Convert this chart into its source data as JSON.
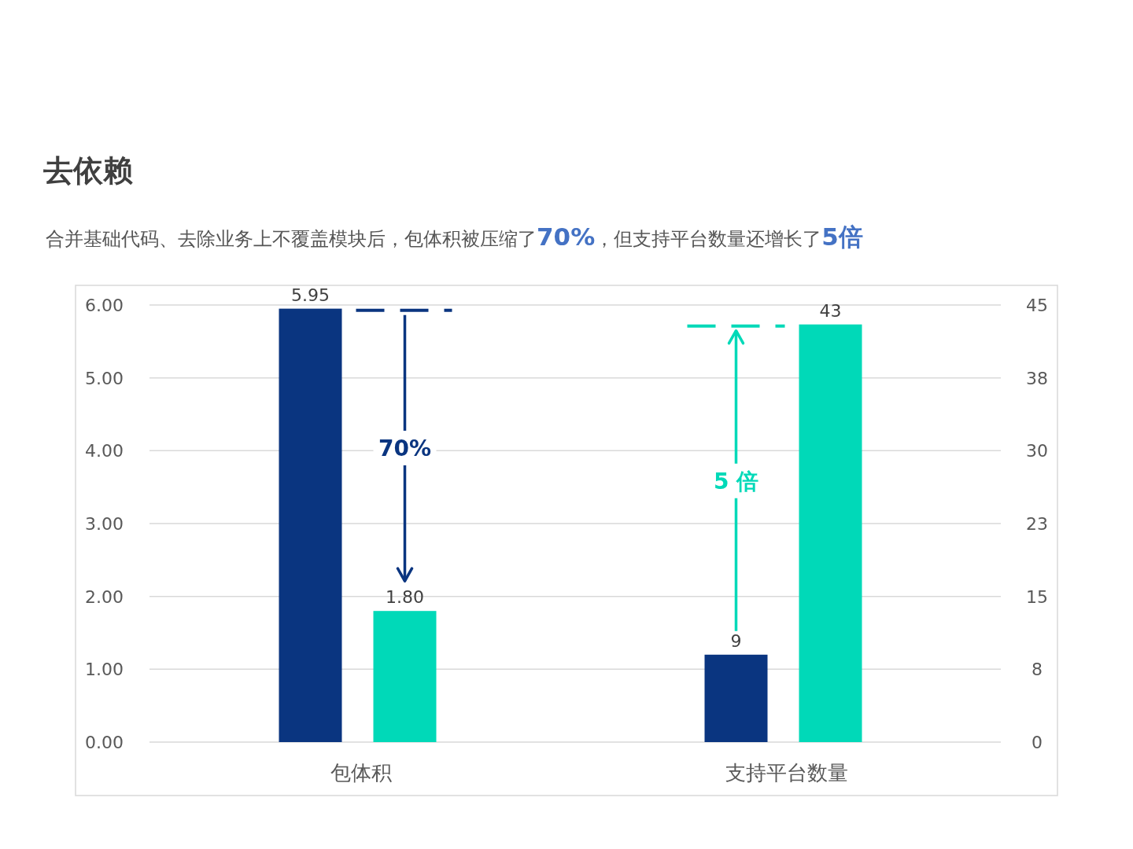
{
  "chart_data": {
    "type": "bar",
    "title": "去依赖",
    "subtitle": "合并基础代码、去除业务上不覆盖模块后，包体积被压缩了**70%**，但支持平台数量还增长了**5倍**",
    "categories": [
      "包体积",
      "支持平台数量"
    ],
    "series": [
      {
        "color": "#0a3580",
        "values": [
          5.95,
          null
        ],
        "value_labels": [
          "5.95",
          null
        ]
      },
      {
        "color": "#00d9b8",
        "values": [
          1.8,
          null
        ],
        "value_labels": [
          "1.80",
          null
        ]
      },
      {
        "color": "#0a3580",
        "values": [
          null,
          9
        ],
        "value_labels": [
          null,
          "9"
        ],
        "axis": "y2"
      },
      {
        "color": "#00d9b8",
        "values": [
          null,
          43
        ],
        "value_labels": [
          null,
          "43"
        ],
        "axis": "y2"
      }
    ],
    "ylim": [
      0,
      6
    ],
    "yticks": [
      {
        "value": 0,
        "label": "0.00"
      },
      {
        "value": 1,
        "label": "1.00"
      },
      {
        "value": 2,
        "label": "2.00"
      },
      {
        "value": 3,
        "label": "3.00"
      },
      {
        "value": 4,
        "label": "4.00"
      },
      {
        "value": 5,
        "label": "5.00"
      },
      {
        "value": 6,
        "label": "6.00"
      }
    ],
    "y2lim": [
      0,
      45
    ],
    "y2ticks": [
      0,
      {
        "value": 7.5,
        "label": "8"
      },
      15,
      {
        "value": 22.5,
        "label": "23"
      },
      30,
      {
        "value": 37.5,
        "label": "38"
      },
      45
    ],
    "grid": "y",
    "annotations": [
      "70%",
      "5 倍"
    ]
  }
}
